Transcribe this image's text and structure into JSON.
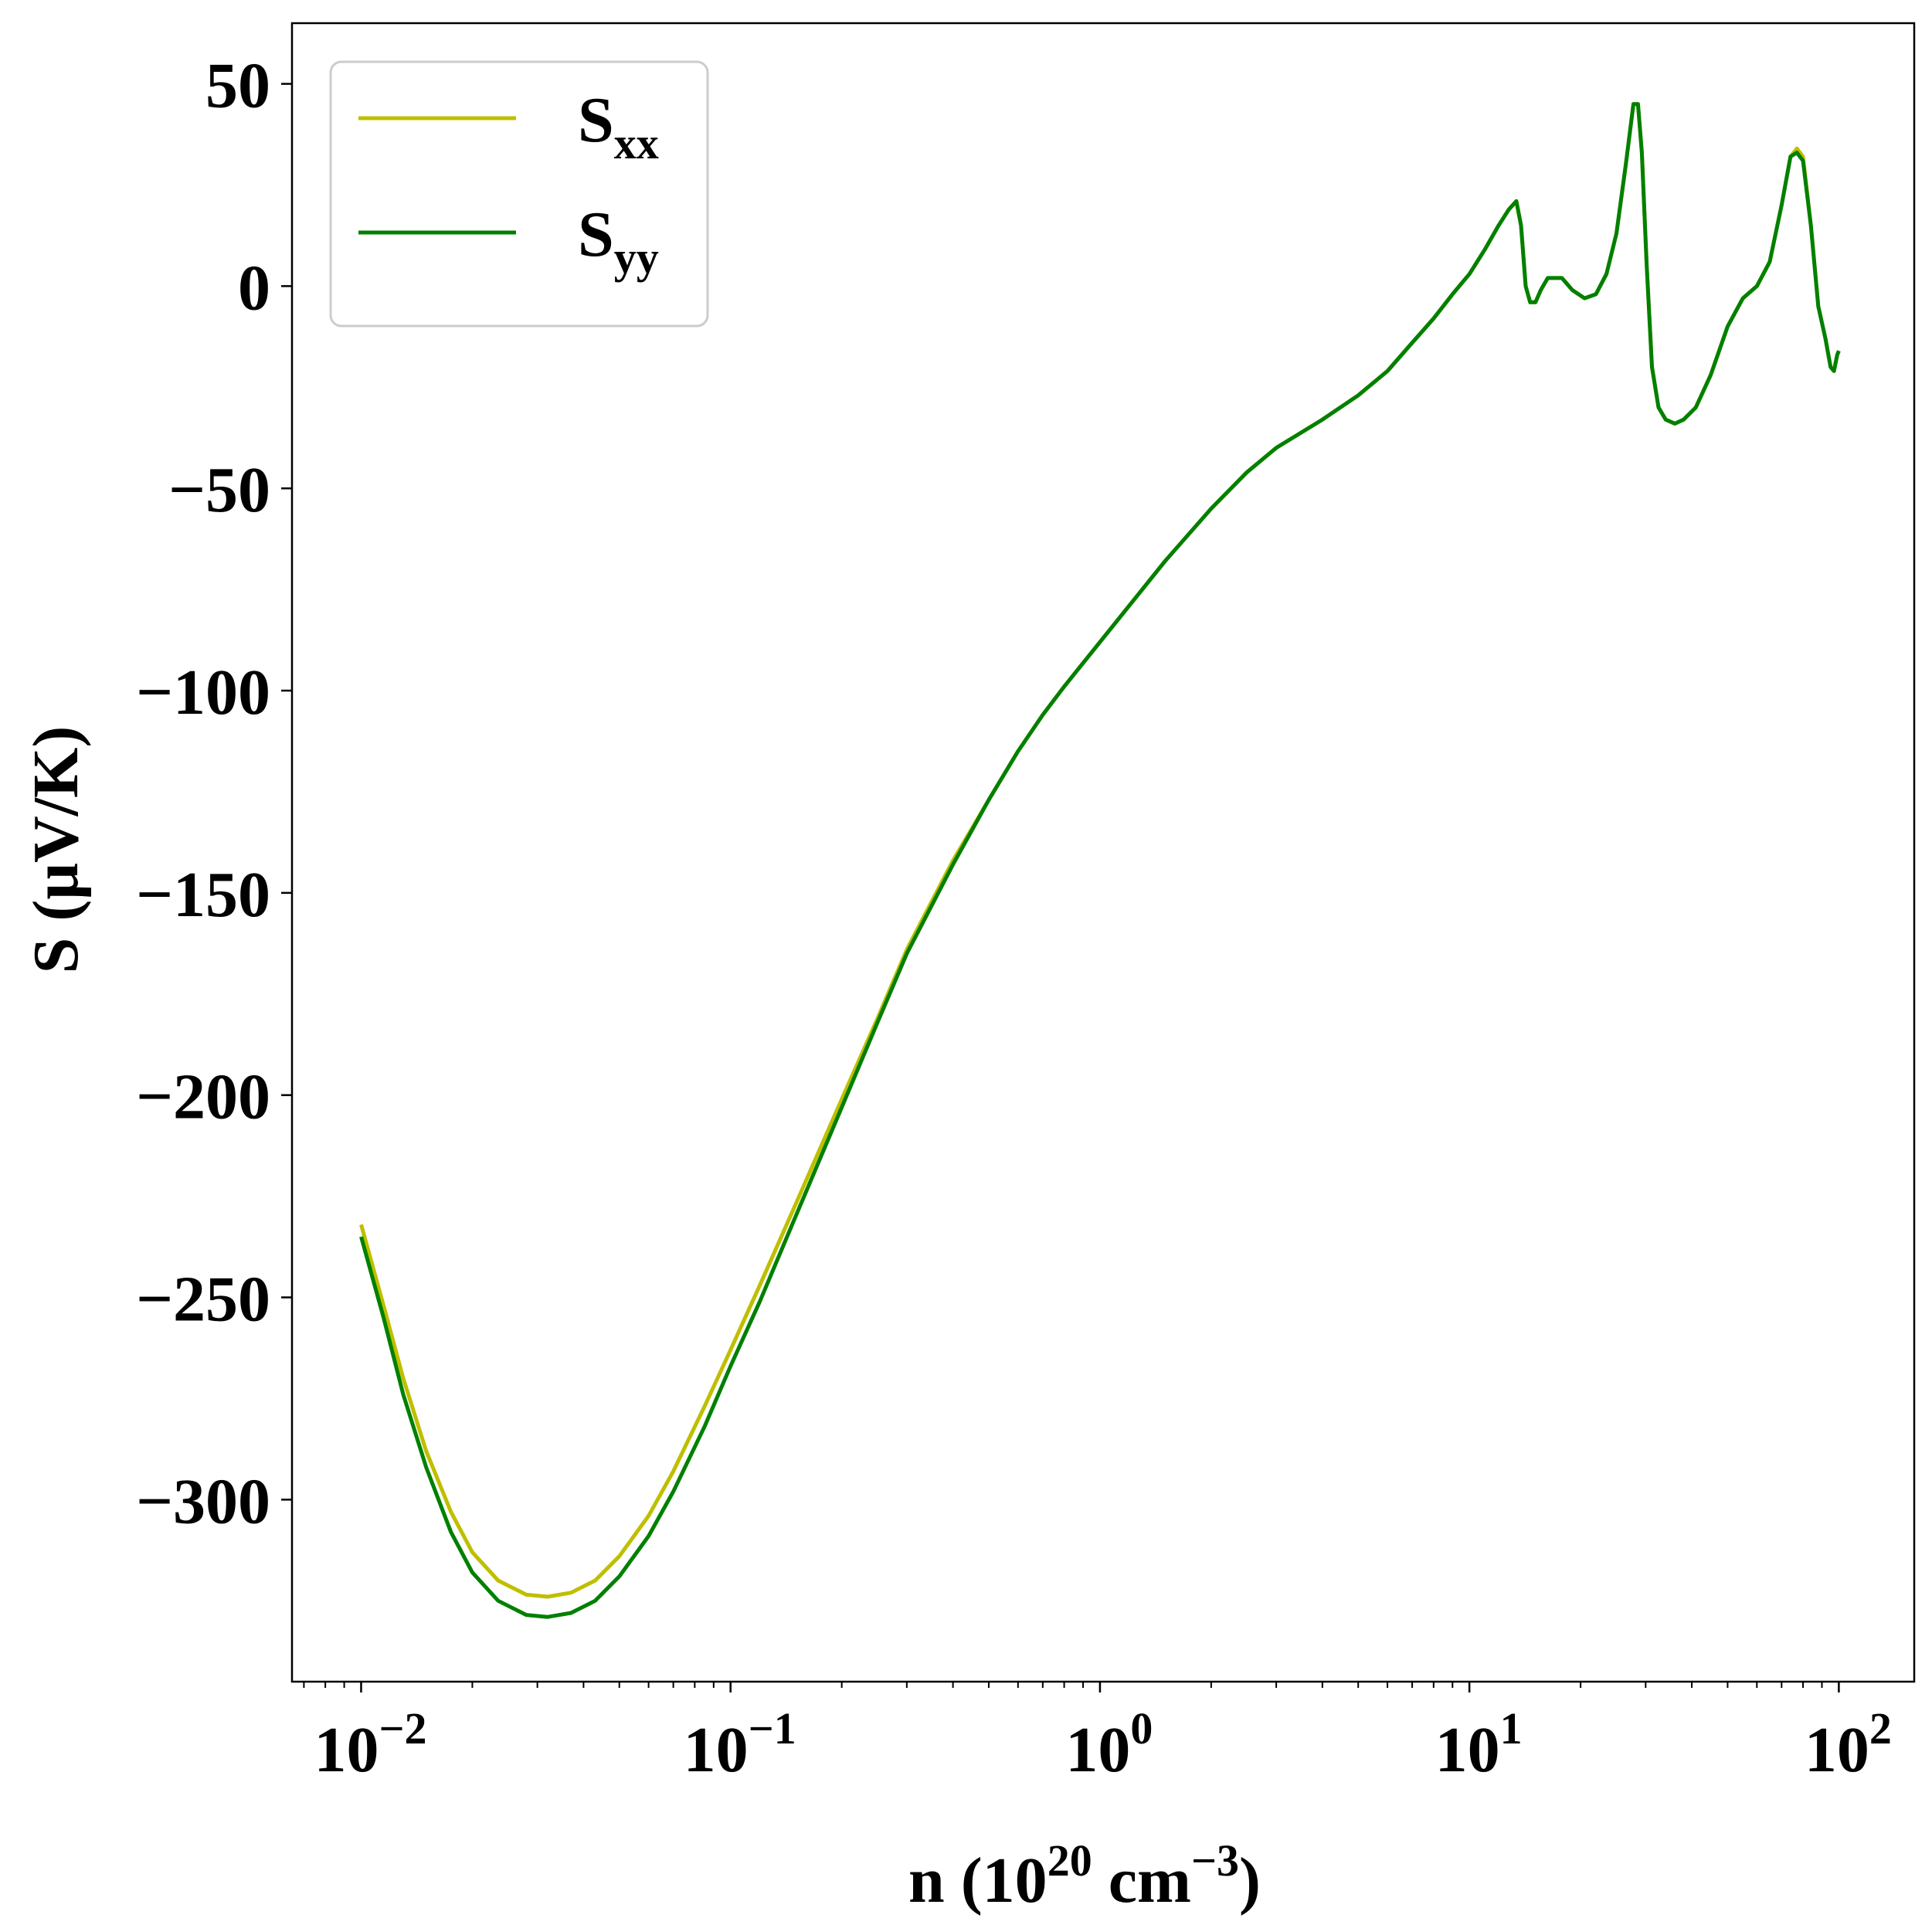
{
  "chart_data": {
    "type": "line",
    "xscale": "log",
    "xlim": [
      0.0065,
      160
    ],
    "ylim": [
      -345,
      65
    ],
    "xlabel": {
      "prefix": "n (10",
      "exp": "20",
      "mid": " cm",
      "exp2": "−3",
      "suffix": ")"
    },
    "ylabel": "S (μV/K)",
    "xticks": [
      {
        "value": 0.01,
        "base": "10",
        "exp": "−2"
      },
      {
        "value": 0.1,
        "base": "10",
        "exp": "−1"
      },
      {
        "value": 1,
        "base": "10",
        "exp": "0"
      },
      {
        "value": 10,
        "base": "10",
        "exp": "1"
      },
      {
        "value": 100,
        "base": "10",
        "exp": "2"
      }
    ],
    "yticks": [
      {
        "value": 50,
        "label": "50"
      },
      {
        "value": 0,
        "label": "0"
      },
      {
        "value": -50,
        "label": "−50"
      },
      {
        "value": -100,
        "label": "−100"
      },
      {
        "value": -150,
        "label": "−150"
      },
      {
        "value": -200,
        "label": "−200"
      },
      {
        "value": -250,
        "label": "−250"
      },
      {
        "value": -300,
        "label": "−300"
      }
    ],
    "legend_position": "top-left",
    "series": [
      {
        "name": "S",
        "sub": "xx",
        "color": "#bfbf00",
        "points": [
          [
            0.01,
            -232
          ],
          [
            0.0115,
            -252
          ],
          [
            0.013,
            -270
          ],
          [
            0.015,
            -288
          ],
          [
            0.0175,
            -303
          ],
          [
            0.02,
            -313
          ],
          [
            0.0235,
            -320
          ],
          [
            0.028,
            -323.5
          ],
          [
            0.032,
            -324
          ],
          [
            0.037,
            -323
          ],
          [
            0.043,
            -320
          ],
          [
            0.05,
            -314
          ],
          [
            0.06,
            -304
          ],
          [
            0.07,
            -293
          ],
          [
            0.085,
            -277
          ],
          [
            0.1,
            -263
          ],
          [
            0.12,
            -247
          ],
          [
            0.15,
            -227
          ],
          [
            0.2,
            -201
          ],
          [
            0.25,
            -181
          ],
          [
            0.3,
            -164
          ],
          [
            0.4,
            -142
          ],
          [
            0.5,
            -127
          ],
          [
            0.6,
            -115
          ],
          [
            0.7,
            -106
          ],
          [
            0.8,
            -99
          ],
          [
            1.0,
            -88
          ],
          [
            1.2,
            -79
          ],
          [
            1.5,
            -68
          ],
          [
            2.0,
            -55
          ],
          [
            2.5,
            -46
          ],
          [
            3.0,
            -40
          ],
          [
            4.0,
            -33
          ],
          [
            5.0,
            -27
          ],
          [
            6.0,
            -21
          ],
          [
            7.0,
            -14
          ],
          [
            8.0,
            -8
          ],
          [
            9.0,
            -2
          ],
          [
            10,
            3
          ],
          [
            11,
            9
          ],
          [
            12,
            15
          ],
          [
            12.8,
            19
          ],
          [
            13.4,
            21
          ],
          [
            13.8,
            15
          ],
          [
            14.2,
            0
          ],
          [
            14.6,
            -4
          ],
          [
            15.1,
            -4
          ],
          [
            15.6,
            -1
          ],
          [
            16.3,
            2
          ],
          [
            17.0,
            2
          ],
          [
            17.8,
            2
          ],
          [
            19.0,
            -1
          ],
          [
            20.5,
            -3
          ],
          [
            22.0,
            -2
          ],
          [
            23.5,
            3
          ],
          [
            25.0,
            13
          ],
          [
            26.5,
            30
          ],
          [
            27.8,
            45
          ],
          [
            28.6,
            45
          ],
          [
            29.3,
            33
          ],
          [
            30.2,
            5
          ],
          [
            31.2,
            -20
          ],
          [
            32.5,
            -30
          ],
          [
            34.0,
            -33
          ],
          [
            36.0,
            -34
          ],
          [
            38.0,
            -33
          ],
          [
            41.0,
            -30
          ],
          [
            45.0,
            -22
          ],
          [
            50.0,
            -10
          ],
          [
            55.0,
            -3
          ],
          [
            60.0,
            0
          ],
          [
            65.0,
            6
          ],
          [
            70.0,
            20
          ],
          [
            74.0,
            32
          ],
          [
            77.0,
            34
          ],
          [
            80.0,
            32
          ],
          [
            84.0,
            15
          ],
          [
            88.0,
            -5
          ],
          [
            92.0,
            -13
          ],
          [
            95.0,
            -20
          ],
          [
            97.0,
            -21
          ],
          [
            99.0,
            -17
          ],
          [
            100,
            -16
          ]
        ]
      },
      {
        "name": "S",
        "sub": "yy",
        "color": "#008000",
        "points": [
          [
            0.01,
            -235
          ],
          [
            0.0115,
            -255
          ],
          [
            0.013,
            -274
          ],
          [
            0.015,
            -292
          ],
          [
            0.0175,
            -308
          ],
          [
            0.02,
            -318
          ],
          [
            0.0235,
            -325
          ],
          [
            0.028,
            -328.5
          ],
          [
            0.032,
            -329
          ],
          [
            0.037,
            -328
          ],
          [
            0.043,
            -325
          ],
          [
            0.05,
            -319
          ],
          [
            0.06,
            -309
          ],
          [
            0.07,
            -298
          ],
          [
            0.085,
            -282
          ],
          [
            0.1,
            -267
          ],
          [
            0.12,
            -251
          ],
          [
            0.15,
            -230
          ],
          [
            0.2,
            -203
          ],
          [
            0.25,
            -182
          ],
          [
            0.3,
            -165
          ],
          [
            0.4,
            -143
          ],
          [
            0.5,
            -127
          ],
          [
            0.6,
            -115
          ],
          [
            0.7,
            -106
          ],
          [
            0.8,
            -99
          ],
          [
            1.0,
            -88
          ],
          [
            1.2,
            -79
          ],
          [
            1.5,
            -68
          ],
          [
            2.0,
            -55
          ],
          [
            2.5,
            -46
          ],
          [
            3.0,
            -40
          ],
          [
            4.0,
            -33
          ],
          [
            5.0,
            -27
          ],
          [
            6.0,
            -21
          ],
          [
            7.0,
            -14
          ],
          [
            8.0,
            -8
          ],
          [
            9.0,
            -2
          ],
          [
            10,
            3
          ],
          [
            11,
            9
          ],
          [
            12,
            15
          ],
          [
            12.8,
            19
          ],
          [
            13.4,
            21
          ],
          [
            13.8,
            15
          ],
          [
            14.2,
            0
          ],
          [
            14.6,
            -4
          ],
          [
            15.1,
            -4
          ],
          [
            15.6,
            -1
          ],
          [
            16.3,
            2
          ],
          [
            17.0,
            2
          ],
          [
            17.8,
            2
          ],
          [
            19.0,
            -1
          ],
          [
            20.5,
            -3
          ],
          [
            22.0,
            -2
          ],
          [
            23.5,
            3
          ],
          [
            25.0,
            13
          ],
          [
            26.5,
            30
          ],
          [
            27.8,
            45
          ],
          [
            28.6,
            45
          ],
          [
            29.3,
            33
          ],
          [
            30.2,
            5
          ],
          [
            31.2,
            -20
          ],
          [
            32.5,
            -30
          ],
          [
            34.0,
            -33
          ],
          [
            36.0,
            -34
          ],
          [
            38.0,
            -33
          ],
          [
            41.0,
            -30
          ],
          [
            45.0,
            -22
          ],
          [
            50.0,
            -10
          ],
          [
            55.0,
            -3
          ],
          [
            60.0,
            0
          ],
          [
            65.0,
            6
          ],
          [
            70.0,
            20
          ],
          [
            74.0,
            32
          ],
          [
            77.0,
            33
          ],
          [
            80.0,
            31
          ],
          [
            84.0,
            15
          ],
          [
            88.0,
            -5
          ],
          [
            92.0,
            -13
          ],
          [
            95.0,
            -20
          ],
          [
            97.0,
            -21
          ],
          [
            99.0,
            -17
          ],
          [
            100,
            -16
          ]
        ]
      }
    ]
  }
}
